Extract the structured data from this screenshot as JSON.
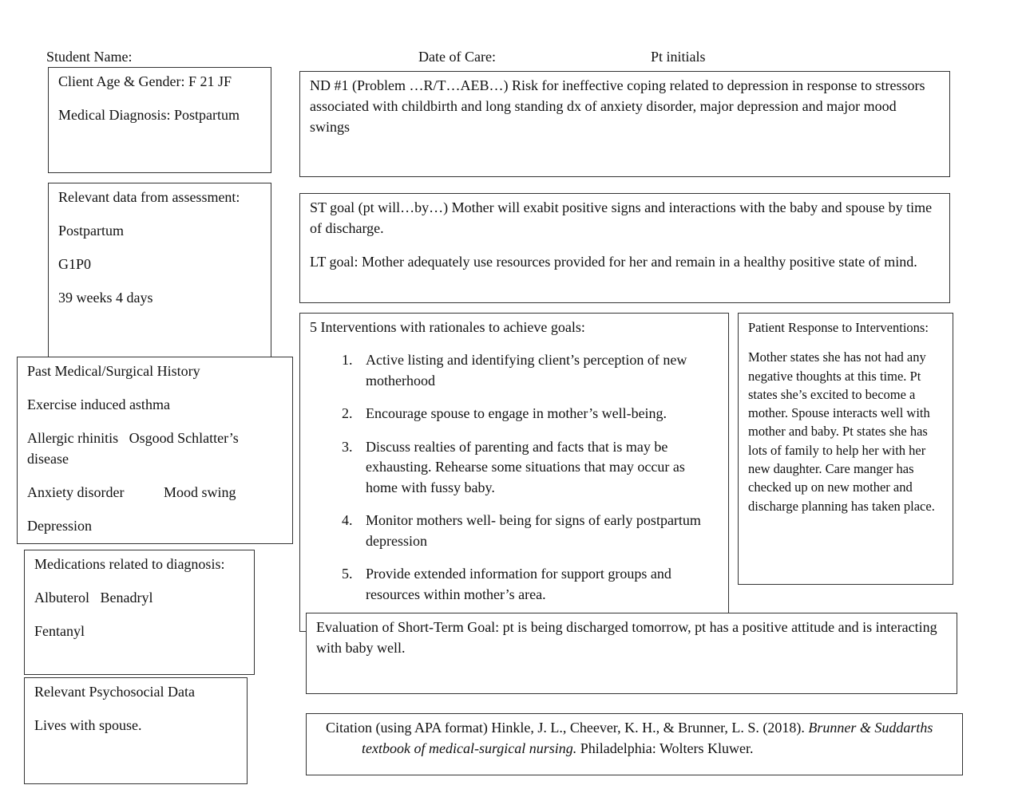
{
  "header": {
    "student_name": "Student Name:",
    "date_of_care": "Date of Care:",
    "pt_initials": "Pt initials"
  },
  "client": {
    "age_gender": "Client Age & Gender: F 21 JF",
    "medical_dx": "Medical Diagnosis: Postpartum"
  },
  "assessment": {
    "title": "Relevant data from assessment:",
    "items": [
      "Postpartum",
      "G1P0",
      "39 weeks 4 days"
    ]
  },
  "history": {
    "title": "Past Medical/Surgical History",
    "items": [
      "Exercise induced asthma",
      "Allergic rhinitis   Osgood Schlatter’s disease",
      "Anxiety disorder           Mood swing",
      "Depression"
    ]
  },
  "medications": {
    "title": "Medications related to diagnosis:",
    "items": [
      "Albuterol   Benadryl",
      "Fentanyl"
    ]
  },
  "psychosocial": {
    "title": "Relevant Psychosocial Data",
    "items": [
      "Lives with spouse."
    ]
  },
  "nd": {
    "text": "ND #1 (Problem …R/T…AEB…)  Risk for ineffective coping related to depression in response to stressors associated with childbirth and long standing dx of anxiety disorder, major depression and major mood swings"
  },
  "goals": {
    "st": "ST goal (pt will…by…) Mother will exabit positive signs and interactions with the baby and spouse by time of discharge.",
    "lt": "LT goal: Mother adequately use resources provided for her and remain in a healthy positive state of mind."
  },
  "interventions": {
    "title": "5 Interventions with rationales to achieve goals:",
    "items": [
      "Active listing and identifying client’s perception of new motherhood",
      "Encourage spouse to engage in mother’s well-being.",
      "Discuss realties of parenting and facts that is may be exhausting. Rehearse some situations that may occur as home with fussy baby.",
      "Monitor mothers well- being for signs of early postpartum depression",
      "Provide extended information for support groups and resources within mother’s area."
    ]
  },
  "response": {
    "title": "Patient Response to Interventions:",
    "text": "Mother states she has not had any negative thoughts at this time. Pt states she’s excited to become a mother. Spouse interacts well with mother and baby. Pt states she has lots of family to help her with her new daughter.  Care manger has checked up on new mother and discharge planning has taken place."
  },
  "evaluation": {
    "text": "Evaluation of Short-Term Goal: pt is being discharged tomorrow, pt has a positive attitude and is interacting with baby well."
  },
  "citation": {
    "prefix": "Citation (using APA format)  Hinkle, J. L., Cheever, K. H., & Brunner, L. S. (2018). ",
    "title": "Brunner & Suddarths textbook of medical-surgical nursing.",
    "suffix": " Philadelphia: Wolters Kluwer."
  }
}
